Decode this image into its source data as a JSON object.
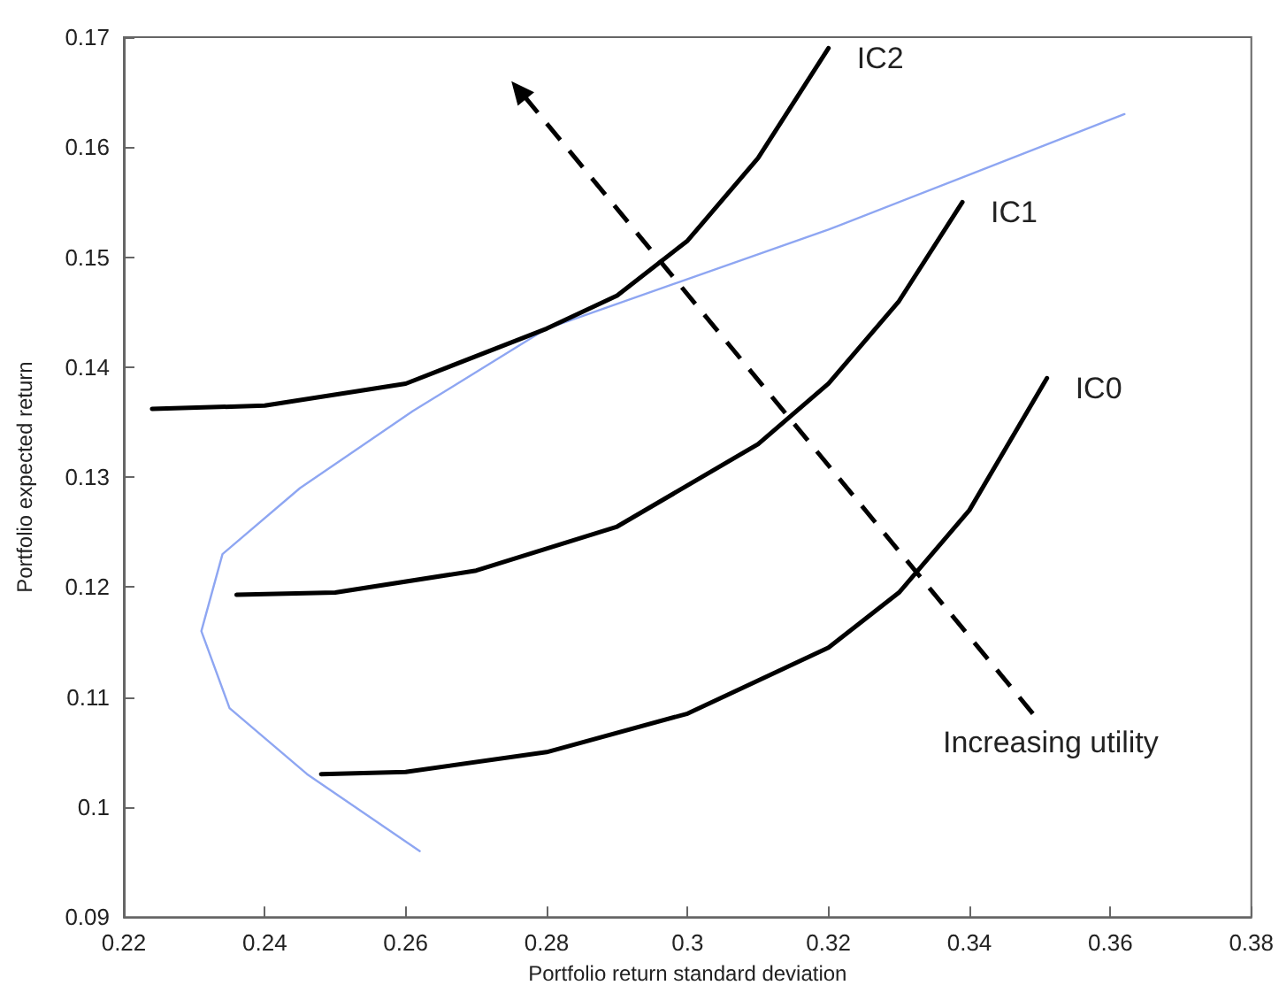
{
  "chart_data": {
    "type": "line",
    "xlabel": "Portfolio return standard deviation",
    "ylabel": "Portfolio expected return",
    "xlim": [
      0.22,
      0.38
    ],
    "xticks": [
      0.22,
      0.24,
      0.26,
      0.28,
      0.3,
      0.32,
      0.34,
      0.36,
      0.38
    ],
    "ylim": [
      0.09,
      0.17
    ],
    "yticks": [
      0.09,
      0.1,
      0.11,
      0.12,
      0.13,
      0.14,
      0.15,
      0.16,
      0.17
    ],
    "grid": false,
    "legend": false,
    "marker": "none",
    "line_style": "solid",
    "annotations": [
      "Increasing utility"
    ],
    "series": [
      {
        "color": "#8ea6f2",
        "x": [
          0.262,
          0.246,
          0.235,
          0.231,
          0.234,
          0.245,
          0.261,
          0.28,
          0.3,
          0.32,
          0.34,
          0.362
        ],
        "values": [
          0.096,
          0.103,
          0.109,
          0.116,
          0.123,
          0.129,
          0.136,
          0.1435,
          0.148,
          0.1525,
          0.1575,
          0.163
        ]
      },
      {
        "name": "IC2",
        "color": "#000000",
        "x": [
          0.224,
          0.24,
          0.26,
          0.28,
          0.29,
          0.3,
          0.31,
          0.32
        ],
        "values": [
          0.1362,
          0.1365,
          0.1385,
          0.1435,
          0.1465,
          0.1515,
          0.159,
          0.169
        ]
      },
      {
        "name": "IC1",
        "color": "#000000",
        "x": [
          0.236,
          0.25,
          0.27,
          0.29,
          0.31,
          0.32,
          0.33,
          0.339
        ],
        "values": [
          0.1193,
          0.1195,
          0.1215,
          0.1255,
          0.133,
          0.1385,
          0.146,
          0.155
        ]
      },
      {
        "name": "IC0",
        "color": "#000000",
        "x": [
          0.248,
          0.26,
          0.28,
          0.3,
          0.32,
          0.33,
          0.34,
          0.351
        ],
        "values": [
          0.103,
          0.1032,
          0.105,
          0.1085,
          0.1145,
          0.1195,
          0.127,
          0.139
        ]
      }
    ]
  }
}
